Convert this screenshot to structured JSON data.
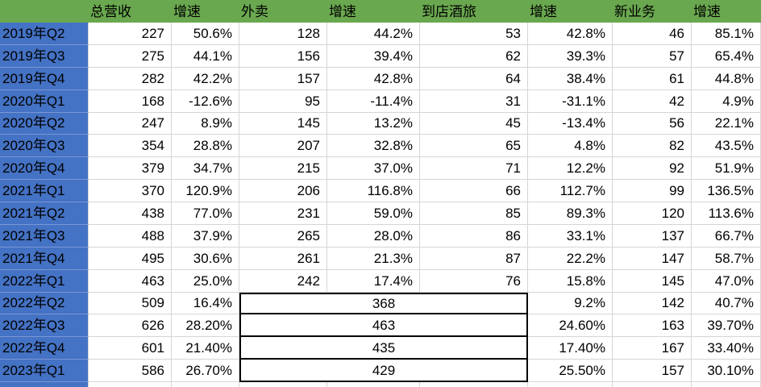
{
  "table": {
    "columns": [
      "",
      "总营收",
      "增速",
      "外卖",
      "增速",
      "到店酒旅",
      "增速",
      "新业务",
      "增速"
    ],
    "rows": [
      {
        "label": "2019年Q2",
        "values": [
          "227",
          "50.6%",
          "128",
          "44.2%",
          "53",
          "42.8%",
          "46",
          "85.1%"
        ]
      },
      {
        "label": "2019年Q3",
        "values": [
          "275",
          "44.1%",
          "156",
          "39.4%",
          "62",
          "39.3%",
          "57",
          "65.4%"
        ]
      },
      {
        "label": "2019年Q4",
        "values": [
          "282",
          "42.2%",
          "157",
          "42.8%",
          "64",
          "38.4%",
          "61",
          "44.8%"
        ]
      },
      {
        "label": "2020年Q1",
        "values": [
          "168",
          "-12.6%",
          "95",
          "-11.4%",
          "31",
          "-31.1%",
          "42",
          "4.9%"
        ]
      },
      {
        "label": "2020年Q2",
        "values": [
          "247",
          "8.9%",
          "145",
          "13.2%",
          "45",
          "-13.4%",
          "56",
          "22.1%"
        ]
      },
      {
        "label": "2020年Q3",
        "values": [
          "354",
          "28.8%",
          "207",
          "32.8%",
          "65",
          "4.8%",
          "82",
          "43.5%"
        ]
      },
      {
        "label": "2020年Q4",
        "values": [
          "379",
          "34.7%",
          "215",
          "37.0%",
          "71",
          "12.2%",
          "92",
          "51.9%"
        ]
      },
      {
        "label": "2021年Q1",
        "values": [
          "370",
          "120.9%",
          "206",
          "116.8%",
          "66",
          "112.7%",
          "99",
          "136.5%"
        ]
      },
      {
        "label": "2021年Q2",
        "values": [
          "438",
          "77.0%",
          "231",
          "59.0%",
          "85",
          "89.3%",
          "120",
          "113.6%"
        ]
      },
      {
        "label": "2021年Q3",
        "values": [
          "488",
          "37.9%",
          "265",
          "28.0%",
          "86",
          "33.1%",
          "137",
          "66.7%"
        ]
      },
      {
        "label": "2021年Q4",
        "values": [
          "495",
          "30.6%",
          "261",
          "21.3%",
          "87",
          "22.2%",
          "147",
          "58.7%"
        ]
      },
      {
        "label": "2022年Q1",
        "values": [
          "463",
          "25.0%",
          "242",
          "17.4%",
          "76",
          "15.8%",
          "145",
          "47.0%"
        ]
      },
      {
        "label": "2022年Q2",
        "values": [
          "509",
          "16.4%"
        ],
        "merged_value": "368",
        "values_after": [
          "9.2%",
          "142",
          "40.7%"
        ]
      },
      {
        "label": "2022年Q3",
        "values": [
          "626",
          "28.20%"
        ],
        "merged_value": "463",
        "values_after": [
          "24.60%",
          "163",
          "39.70%"
        ]
      },
      {
        "label": "2022年Q4",
        "values": [
          "601",
          "21.40%"
        ],
        "merged_value": "435",
        "values_after": [
          "17.40%",
          "167",
          "33.40%"
        ]
      },
      {
        "label": "2023年Q1",
        "values": [
          "586",
          "26.70%"
        ],
        "merged_value": "429",
        "values_after": [
          "25.50%",
          "157",
          "30.10%"
        ]
      }
    ]
  },
  "colors": {
    "header_bg": "#6AA84F",
    "label_bg": "#4472C4",
    "gridline": "#d5d5d5",
    "label_gridline": "#7b97d6",
    "merged_border": "#000000",
    "text": "#000000"
  }
}
